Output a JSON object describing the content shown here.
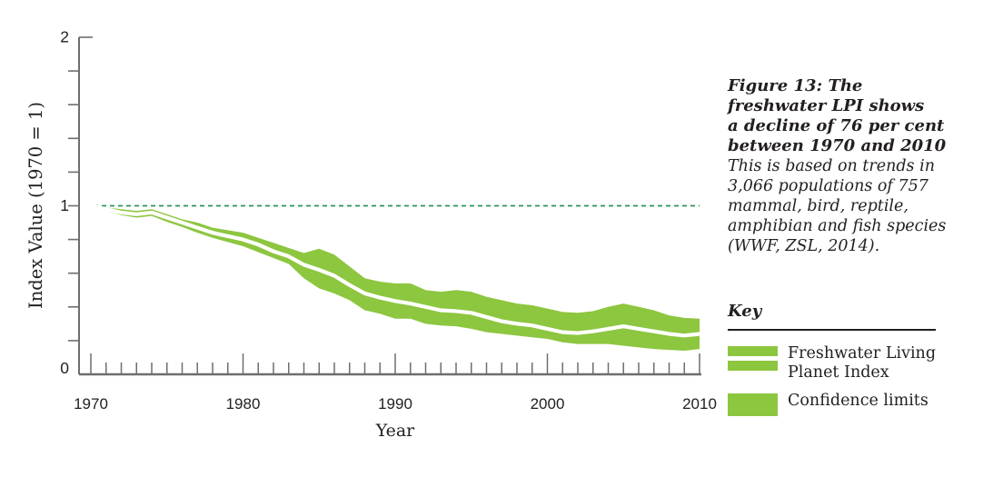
{
  "figure": {
    "caption_title": [
      "Figure 13: The",
      "freshwater LPI shows",
      "a decline of 76 per cent",
      "between 1970 and 2010"
    ],
    "caption_body": [
      "This is based on trends in",
      "3,066 populations of 757",
      "mammal, bird, reptile,",
      "amphibian and fish species",
      "(WWF, ZSL, 2014)."
    ]
  },
  "key": {
    "title": "Key",
    "items": [
      {
        "label": [
          "Freshwater Living",
          "Planet Index"
        ],
        "swatch": "line-band"
      },
      {
        "label": [
          "Confidence limits"
        ],
        "swatch": "solid"
      }
    ]
  },
  "colors": {
    "band_green": "#8dc63f",
    "index_line": "#ffffff",
    "reference_dash_green": "#2b9551",
    "axis_gray": "#6d6e71",
    "text_dark": "#231f20"
  },
  "chart_data": {
    "type": "area",
    "xlabel": "Year",
    "ylabel": "Index Value (1970 = 1)",
    "xlim": [
      1970,
      2010
    ],
    "ylim": [
      0,
      2
    ],
    "x_major_ticks": [
      1970,
      1980,
      1990,
      2000,
      2010
    ],
    "y_major_ticks": [
      0,
      1,
      2
    ],
    "y_minor_step": 0.2,
    "x_minor_step": 1,
    "grid": false,
    "legend_position": "right",
    "reference_line": {
      "value": 1,
      "style": "dashed"
    },
    "years": [
      1970,
      1971,
      1972,
      1973,
      1974,
      1975,
      1976,
      1977,
      1978,
      1979,
      1980,
      1981,
      1982,
      1983,
      1984,
      1985,
      1986,
      1987,
      1988,
      1989,
      1990,
      1991,
      1992,
      1993,
      1994,
      1995,
      1996,
      1997,
      1998,
      1999,
      2000,
      2001,
      2002,
      2003,
      2004,
      2005,
      2006,
      2007,
      2008,
      2009,
      2010
    ],
    "series": [
      {
        "name": "Freshwater Living Planet Index",
        "values": [
          1.0,
          0.98,
          0.96,
          0.95,
          0.96,
          0.93,
          0.9,
          0.87,
          0.84,
          0.82,
          0.8,
          0.77,
          0.73,
          0.7,
          0.65,
          0.62,
          0.585,
          0.53,
          0.48,
          0.455,
          0.435,
          0.42,
          0.4,
          0.38,
          0.375,
          0.365,
          0.34,
          0.315,
          0.3,
          0.29,
          0.27,
          0.25,
          0.245,
          0.255,
          0.27,
          0.285,
          0.27,
          0.255,
          0.24,
          0.23,
          0.24
        ]
      },
      {
        "name": "Confidence limits (upper)",
        "values": [
          1.0,
          0.99,
          0.98,
          0.97,
          0.98,
          0.95,
          0.92,
          0.9,
          0.87,
          0.855,
          0.84,
          0.81,
          0.78,
          0.75,
          0.72,
          0.745,
          0.71,
          0.64,
          0.57,
          0.55,
          0.54,
          0.54,
          0.5,
          0.49,
          0.5,
          0.49,
          0.46,
          0.44,
          0.42,
          0.41,
          0.39,
          0.37,
          0.365,
          0.375,
          0.4,
          0.42,
          0.4,
          0.38,
          0.35,
          0.335,
          0.33
        ]
      },
      {
        "name": "Confidence limits (lower)",
        "values": [
          1.0,
          0.97,
          0.945,
          0.93,
          0.94,
          0.905,
          0.875,
          0.84,
          0.81,
          0.785,
          0.76,
          0.725,
          0.69,
          0.655,
          0.57,
          0.51,
          0.48,
          0.44,
          0.38,
          0.36,
          0.33,
          0.33,
          0.3,
          0.29,
          0.285,
          0.27,
          0.25,
          0.24,
          0.23,
          0.22,
          0.21,
          0.19,
          0.18,
          0.18,
          0.18,
          0.17,
          0.16,
          0.15,
          0.145,
          0.14,
          0.15
        ]
      }
    ]
  }
}
